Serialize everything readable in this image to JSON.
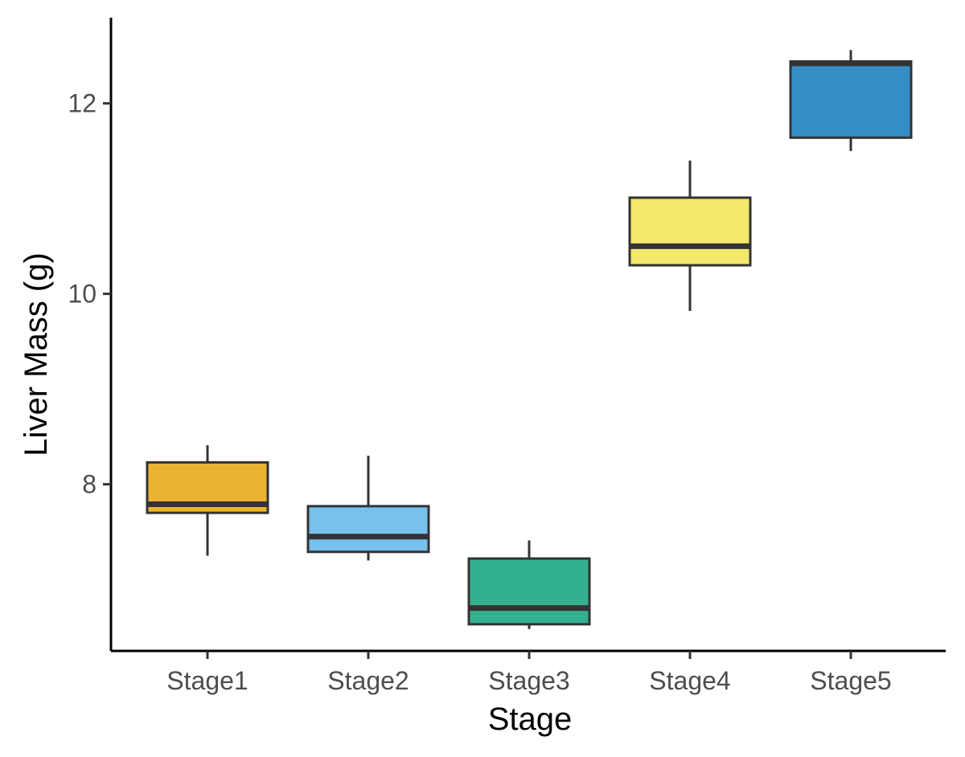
{
  "chart_data": {
    "type": "boxplot",
    "title": "",
    "xlabel": "Stage",
    "ylabel": "Liver Mass (g)",
    "categories": [
      "Stage1",
      "Stage2",
      "Stage3",
      "Stage4",
      "Stage5"
    ],
    "boxes": [
      {
        "category": "Stage1",
        "whisker_low": 7.25,
        "q1": 7.7,
        "median": 7.79,
        "q3": 8.23,
        "whisker_high": 8.41,
        "color": "#EAB334"
      },
      {
        "category": "Stage2",
        "whisker_low": 7.2,
        "q1": 7.29,
        "median": 7.45,
        "q3": 7.77,
        "whisker_high": 8.3,
        "color": "#77C1ED"
      },
      {
        "category": "Stage3",
        "whisker_low": 6.48,
        "q1": 6.53,
        "median": 6.7,
        "q3": 7.22,
        "whisker_high": 7.41,
        "color": "#33B18F"
      },
      {
        "category": "Stage4",
        "whisker_low": 9.82,
        "q1": 10.3,
        "median": 10.5,
        "q3": 11.01,
        "whisker_high": 11.4,
        "color": "#F2E86B"
      },
      {
        "category": "Stage5",
        "whisker_low": 11.5,
        "q1": 11.64,
        "median": 12.42,
        "q3": 12.44,
        "whisker_high": 12.56,
        "color": "#348EC4"
      }
    ],
    "y_ticks": [
      8,
      10,
      12
    ],
    "y_tick_labels": [
      "8",
      "10",
      "12"
    ],
    "ylim": [
      6.25,
      12.9
    ],
    "grid": false,
    "legend": "none",
    "colors": {
      "box_outline": "#333333",
      "axis_line": "#000000",
      "tick_label": "#4d4d4d",
      "axis_title": "#000000"
    }
  }
}
